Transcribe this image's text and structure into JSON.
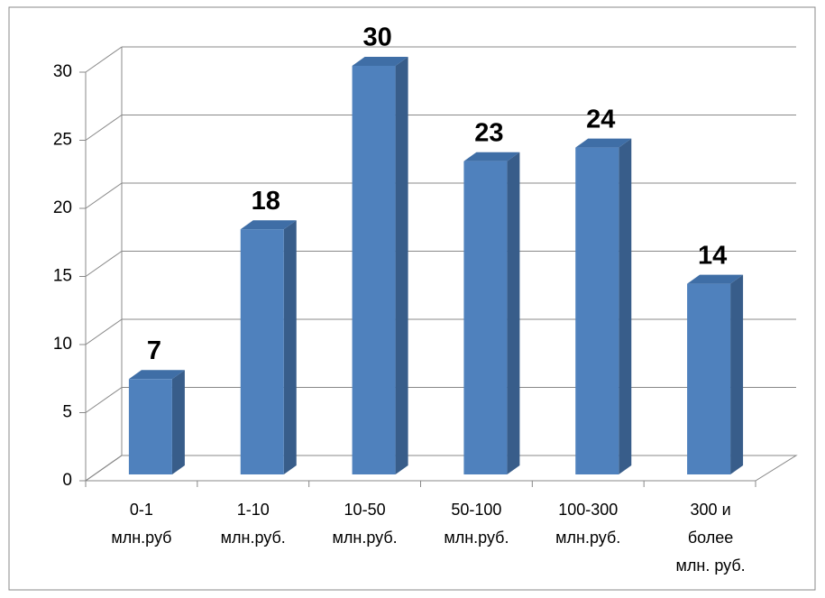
{
  "chart_data": {
    "type": "bar3d",
    "categories": [
      [
        "0-1",
        "млн.руб"
      ],
      [
        "1-10",
        "млн.руб."
      ],
      [
        "10-50",
        "млн.руб."
      ],
      [
        "50-100",
        "млн.руб."
      ],
      [
        "100-300",
        "млн.руб."
      ],
      [
        "300 и",
        "более",
        "млн. руб."
      ]
    ],
    "values": [
      7,
      18,
      30,
      23,
      24,
      14
    ],
    "color": "#4f81bd",
    "ylim": [
      0,
      30
    ],
    "yticks": [
      0,
      5,
      10,
      15,
      20,
      25,
      30
    ],
    "grid": true
  }
}
